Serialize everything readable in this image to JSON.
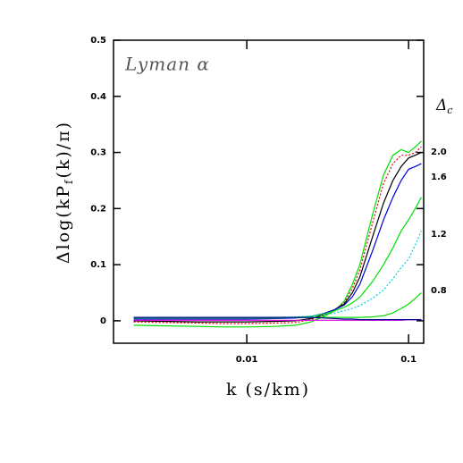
{
  "chart_data": {
    "type": "line",
    "log_x": true,
    "title": "Lyman α",
    "xlabel": "k (s/km)",
    "ylabel": [
      "Δlog(kP",
      "f",
      "(k)/π)"
    ],
    "legend_title": [
      "Δ",
      "c"
    ],
    "curve_labels": [
      "2.0",
      "1.6",
      "1.2",
      "0.8"
    ],
    "x": [
      0.002,
      0.003,
      0.005,
      0.007,
      0.01,
      0.015,
      0.02,
      0.025,
      0.03,
      0.035,
      0.04,
      0.045,
      0.05,
      0.06,
      0.07,
      0.08,
      0.09,
      0.1,
      0.11,
      0.12
    ],
    "xlim": [
      0.0015,
      0.124
    ],
    "ylim": [
      -0.04,
      0.5
    ],
    "xticks": [
      0.01,
      0.1
    ],
    "yticks": [
      0,
      0.1,
      0.2,
      0.3,
      0.4,
      0.5
    ],
    "series": [
      {
        "color": "#00e000",
        "dash": false,
        "values": [
          -0.008,
          -0.009,
          -0.01,
          -0.011,
          -0.011,
          -0.01,
          -0.008,
          -0.002,
          0.008,
          0.018,
          0.035,
          0.065,
          0.1,
          0.19,
          0.26,
          0.295,
          0.305,
          0.3,
          0.31,
          0.32
        ]
      },
      {
        "color": "#e00000",
        "dash": true,
        "values": [
          -0.002,
          -0.003,
          -0.004,
          -0.005,
          -0.005,
          -0.004,
          -0.003,
          0.002,
          0.01,
          0.02,
          0.032,
          0.058,
          0.09,
          0.175,
          0.245,
          0.28,
          0.295,
          0.295,
          0.3,
          0.31
        ]
      },
      {
        "color": "#000000",
        "dash": false,
        "values": [
          0,
          -0.001,
          -0.002,
          -0.002,
          -0.002,
          -0.001,
          0,
          0.004,
          0.011,
          0.02,
          0.03,
          0.05,
          0.078,
          0.15,
          0.21,
          0.25,
          0.275,
          0.29,
          0.295,
          0.3
        ]
      },
      {
        "color": "#0000e0",
        "dash": false,
        "values": [
          0.003,
          0.003,
          0.003,
          0.003,
          0.003,
          0.004,
          0.005,
          0.008,
          0.013,
          0.02,
          0.028,
          0.043,
          0.065,
          0.125,
          0.18,
          0.22,
          0.25,
          0.27,
          0.275,
          0.28
        ]
      },
      {
        "color": "#00e000",
        "dash": false,
        "values": [
          0.005,
          0.005,
          0.005,
          0.005,
          0.005,
          0.005,
          0.006,
          0.008,
          0.012,
          0.018,
          0.024,
          0.032,
          0.042,
          0.07,
          0.1,
          0.13,
          0.16,
          0.18,
          0.2,
          0.22
        ]
      },
      {
        "color": "#00d0e0",
        "dash": true,
        "values": [
          0.006,
          0.006,
          0.006,
          0.006,
          0.006,
          0.006,
          0.007,
          0.008,
          0.011,
          0.014,
          0.018,
          0.022,
          0.027,
          0.04,
          0.055,
          0.075,
          0.095,
          0.11,
          0.135,
          0.16
        ]
      },
      {
        "color": "#00e000",
        "dash": false,
        "values": [
          0.006,
          0.006,
          0.006,
          0.006,
          0.006,
          0.006,
          0.006,
          0.006,
          0.006,
          0.006,
          0.006,
          0.006,
          0.006,
          0.007,
          0.009,
          0.014,
          0.022,
          0.03,
          0.04,
          0.05
        ]
      },
      {
        "color": "#e000e0",
        "dash": false,
        "values": [
          0.001,
          0.001,
          0.001,
          0.001,
          0.001,
          0.001,
          0.001,
          0.001,
          0.001,
          0.001,
          0.001,
          0.001,
          0.001,
          0.001,
          0.001,
          0.001,
          0.001,
          0.002,
          0.002,
          0.002
        ]
      },
      {
        "color": "#000090",
        "dash": false,
        "values": [
          0.006,
          0.006,
          0.006,
          0.006,
          0.006,
          0.006,
          0.006,
          0.006,
          0.005,
          0.004,
          0.003,
          0.003,
          0.002,
          0.002,
          0.002,
          0.002,
          0.002,
          0.002,
          0.002,
          0.002
        ]
      }
    ]
  }
}
